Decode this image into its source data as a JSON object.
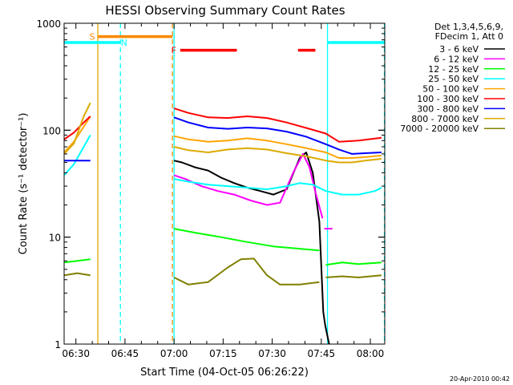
{
  "chart_data": {
    "type": "line",
    "title": "HESSI Observing Summary Count Rates",
    "xlabel": "Start Time (04-Oct-05 06:26:22)",
    "ylabel": "Count Rate (s⁻¹ detector⁻¹)",
    "x_unit": "minutes after 06:26:22",
    "xlim": [
      0,
      98
    ],
    "ylim": [
      1,
      1000
    ],
    "yscale": "log",
    "x_tick_labels": [
      "06:30",
      "06:45",
      "07:00",
      "07:15",
      "07:30",
      "07:45",
      "08:00"
    ],
    "x_tick_values": [
      3.6,
      18.6,
      33.6,
      48.6,
      63.6,
      78.6,
      93.6
    ],
    "y_tick_labels": [
      "1",
      "10",
      "100",
      "1000"
    ],
    "y_tick_values": [
      1,
      10,
      100,
      1000
    ],
    "legend_title": [
      "Det 1,3,4,5,6,9,",
      "FDecim 1, Att 0"
    ],
    "legend_position": "right",
    "series": [
      {
        "name": "3 - 6 keV",
        "color": "#000000",
        "segments": [
          [
            [
              33.6,
              52
            ],
            [
              36,
              50
            ],
            [
              40,
              45
            ],
            [
              44,
              42
            ],
            [
              48,
              36
            ],
            [
              52,
              32
            ],
            [
              56,
              29
            ],
            [
              60,
              27
            ],
            [
              64,
              25
            ],
            [
              68,
              28
            ],
            [
              72,
              55
            ],
            [
              74,
              62
            ],
            [
              76,
              40
            ],
            [
              78,
              14
            ],
            [
              79.2,
              2.0
            ],
            [
              79.8,
              1.5
            ],
            [
              81,
              1.0
            ]
          ]
        ]
      },
      {
        "name": "6 - 12 keV",
        "color": "#ff00ff",
        "segments": [
          [
            [
              33.6,
              38
            ],
            [
              37,
              35
            ],
            [
              42,
              30
            ],
            [
              47,
              27
            ],
            [
              52,
              25
            ],
            [
              57,
              22
            ],
            [
              62,
              20
            ],
            [
              66,
              21
            ],
            [
              70,
              40
            ],
            [
              73,
              60
            ],
            [
              75,
              45
            ],
            [
              77,
              25
            ],
            [
              79,
              15
            ]
          ],
          [
            [
              79.5,
              12
            ],
            [
              82,
              12
            ]
          ]
        ]
      },
      {
        "name": "12 - 25 keV",
        "color": "#00ff00",
        "segments": [
          [
            [
              0,
              5.8
            ],
            [
              4,
              6
            ],
            [
              8,
              6.2
            ]
          ],
          [
            [
              33.6,
              12
            ],
            [
              40,
              11
            ],
            [
              48,
              10
            ],
            [
              56,
              9
            ],
            [
              64,
              8.2
            ],
            [
              72,
              7.8
            ],
            [
              78,
              7.5
            ]
          ],
          [
            [
              80,
              5.5
            ],
            [
              85,
              5.8
            ],
            [
              90,
              5.6
            ],
            [
              97,
              5.8
            ]
          ]
        ]
      },
      {
        "name": "25 - 50 keV",
        "color": "#00ffff",
        "segments": [
          [
            [
              0,
              38
            ],
            [
              3,
              48
            ],
            [
              6,
              70
            ],
            [
              8,
              90
            ]
          ],
          [
            [
              33.6,
              35
            ],
            [
              38,
              33
            ],
            [
              44,
              31
            ],
            [
              50,
              30
            ],
            [
              56,
              29
            ],
            [
              62,
              28
            ],
            [
              68,
              30
            ],
            [
              72,
              32
            ],
            [
              76,
              31
            ],
            [
              80,
              27
            ],
            [
              85,
              25
            ],
            [
              90,
              25
            ],
            [
              95,
              27
            ],
            [
              97,
              29
            ]
          ]
        ]
      },
      {
        "name": "50 - 100 keV",
        "color": "#ffa500",
        "segments": [
          [
            [
              0,
              62
            ],
            [
              3,
              78
            ],
            [
              6,
              108
            ],
            [
              8,
              135
            ]
          ],
          [
            [
              33.6,
              88
            ],
            [
              38,
              82
            ],
            [
              44,
              78
            ],
            [
              50,
              80
            ],
            [
              56,
              84
            ],
            [
              62,
              80
            ],
            [
              68,
              74
            ],
            [
              74,
              68
            ],
            [
              80,
              62
            ],
            [
              84,
              55
            ],
            [
              88,
              55
            ],
            [
              92,
              56
            ],
            [
              97,
              58
            ]
          ]
        ]
      },
      {
        "name": "100 - 300 keV",
        "color": "#ff0000",
        "segments": [
          [
            [
              0,
              82
            ],
            [
              3,
              95
            ],
            [
              6,
              118
            ],
            [
              8,
              135
            ]
          ],
          [
            [
              33.6,
              160
            ],
            [
              38,
              145
            ],
            [
              44,
              132
            ],
            [
              50,
              130
            ],
            [
              56,
              135
            ],
            [
              62,
              130
            ],
            [
              68,
              118
            ],
            [
              74,
              105
            ],
            [
              80,
              93
            ],
            [
              84,
              78
            ],
            [
              90,
              80
            ],
            [
              97,
              85
            ]
          ]
        ]
      },
      {
        "name": "300 - 800 keV",
        "color": "#0000ff",
        "segments": [
          [
            [
              0,
              52
            ],
            [
              4,
              52
            ],
            [
              8,
              52
            ]
          ],
          [
            [
              33.6,
              132
            ],
            [
              38,
              118
            ],
            [
              44,
              106
            ],
            [
              50,
              103
            ],
            [
              56,
              106
            ],
            [
              62,
              104
            ],
            [
              68,
              97
            ],
            [
              74,
              87
            ],
            [
              80,
              74
            ],
            [
              84,
              66
            ],
            [
              88,
              60
            ],
            [
              92,
              61
            ],
            [
              97,
              62
            ]
          ]
        ]
      },
      {
        "name": "800 - 7000 keV",
        "color": "#ddaa00",
        "segments": [
          [
            [
              0,
              60
            ],
            [
              3,
              75
            ],
            [
              6,
              135
            ],
            [
              8,
              180
            ]
          ],
          [
            [
              33.6,
              70
            ],
            [
              38,
              65
            ],
            [
              44,
              62
            ],
            [
              50,
              66
            ],
            [
              56,
              68
            ],
            [
              62,
              66
            ],
            [
              68,
              61
            ],
            [
              74,
              57
            ],
            [
              80,
              52
            ],
            [
              84,
              50
            ],
            [
              88,
              50
            ],
            [
              92,
              52
            ],
            [
              97,
              54
            ]
          ]
        ]
      },
      {
        "name": "7000 - 20000 keV",
        "color": "#808000",
        "segments": [
          [
            [
              0,
              4.4
            ],
            [
              4,
              4.6
            ],
            [
              8,
              4.4
            ]
          ],
          [
            [
              33.6,
              4.2
            ],
            [
              38,
              3.6
            ],
            [
              44,
              3.8
            ],
            [
              50,
              5.2
            ],
            [
              54,
              6.2
            ],
            [
              58,
              6.3
            ],
            [
              62,
              4.4
            ],
            [
              66,
              3.6
            ],
            [
              72,
              3.6
            ],
            [
              78,
              3.8
            ]
          ],
          [
            [
              80,
              4.2
            ],
            [
              85,
              4.3
            ],
            [
              90,
              4.2
            ],
            [
              97,
              4.4
            ]
          ]
        ]
      }
    ],
    "flag_bars": [
      {
        "label": "S",
        "color": "#ff8800",
        "y": 750,
        "x_start": 10.3,
        "x_end": 33.1,
        "label_x": 8.6
      },
      {
        "label": "N",
        "color": "#00ffff",
        "y": 660,
        "x_start": 0,
        "x_end": 17.2,
        "label_x": 18.3
      },
      {
        "label": "N",
        "color": "#00ffff",
        "y": 660,
        "x_start": 80.5,
        "x_end": 97.9,
        "label_x": null
      },
      {
        "label": "F",
        "color": "#ff0000",
        "y": 560,
        "x_start": 35.5,
        "x_end": 52.8,
        "label_x": 33.5
      },
      {
        "label": "",
        "color": "#ff0000",
        "y": 560,
        "x_start": 71.5,
        "x_end": 76.8,
        "label_x": null
      }
    ],
    "vertical_markers": [
      {
        "x": 10.3,
        "color": "#ddaa00",
        "dashed": false
      },
      {
        "x": 17.2,
        "color": "#00ffff",
        "dashed": true
      },
      {
        "x": 33.1,
        "color": "#ff8800",
        "dashed": true
      },
      {
        "x": 33.6,
        "color": "#00ffff",
        "dashed": false
      },
      {
        "x": 80.5,
        "color": "#00ffff",
        "dashed": false
      },
      {
        "x": 97.9,
        "color": "#00ffff",
        "dashed": true
      }
    ]
  },
  "timestamp": "20-Apr-2010 00:42"
}
